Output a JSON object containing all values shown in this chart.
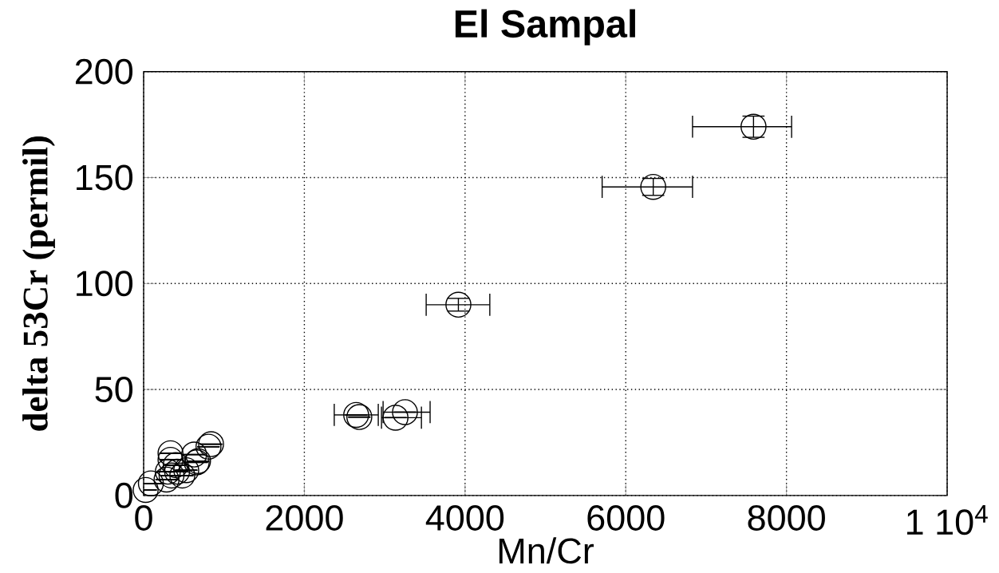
{
  "chart_data": {
    "type": "scatter",
    "title": "El Sampal",
    "xlabel": "Mn/Cr",
    "ylabel": "delta 53Cr (permil)",
    "x": [
      25,
      90,
      334,
      334,
      301,
      347,
      285,
      416,
      481,
      530,
      628,
      677,
      660,
      807,
      839,
      399,
      2645,
      2684,
      3135,
      3252,
      3917,
      6342,
      7590
    ],
    "values": [
      2.6,
      5.7,
      19.9,
      16.8,
      11.2,
      9.4,
      7.5,
      11.2,
      9.4,
      11.9,
      19.3,
      16.2,
      15.6,
      23,
      24.2,
      14.3,
      38,
      37,
      36.7,
      39.3,
      90,
      145.6,
      174
    ],
    "xerrors": [
      null,
      null,
      null,
      null,
      null,
      null,
      null,
      null,
      null,
      null,
      null,
      null,
      null,
      null,
      null,
      null,
      [
        2372,
        2920
      ],
      null,
      [
        2960,
        3457
      ],
      [
        2980,
        3565
      ],
      [
        3516,
        4308
      ],
      [
        5706,
        6831
      ],
      [
        6831,
        8064
      ]
    ],
    "errors": [
      null,
      null,
      null,
      null,
      null,
      null,
      null,
      null,
      null,
      null,
      null,
      null,
      null,
      null,
      null,
      null,
      null,
      null,
      null,
      null,
      3,
      4,
      5
    ],
    "color": "#000000",
    "marker": "circle",
    "xlim": [
      0,
      10000
    ],
    "ylim": [
      0,
      200
    ],
    "xticks": [
      0,
      2000,
      4000,
      6000,
      8000,
      {
        "value": 10000,
        "label": "1 10$^{4}$"
      }
    ],
    "yticks": [
      0,
      50,
      100,
      150,
      200
    ],
    "grid": true,
    "line_style": "dotted"
  }
}
